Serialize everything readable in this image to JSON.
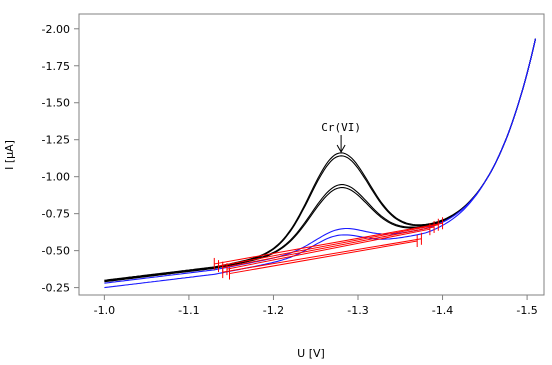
{
  "chart_data": {
    "type": "line",
    "title": "",
    "xlabel": "U [V]",
    "ylabel": "I [µA]",
    "xlim": [
      -0.97,
      -1.52
    ],
    "ylim": [
      -0.2,
      -2.1
    ],
    "x_ticks": [
      -1.0,
      -1.1,
      -1.2,
      -1.3,
      -1.4,
      -1.5
    ],
    "x_tick_labels": [
      "-1.0",
      "-1.1",
      "-1.2",
      "-1.3",
      "-1.4",
      "-1.5"
    ],
    "y_ticks": [
      -2.0,
      -1.75,
      -1.5,
      -1.25,
      -1.0,
      -0.75,
      -0.5,
      -0.25
    ],
    "y_tick_labels": [
      "-2.00",
      "-1.75",
      "-1.50",
      "-1.25",
      "-1.00",
      "-0.75",
      "-0.50",
      "-0.25"
    ],
    "grid": false,
    "annotation": {
      "text": "Cr(VI)",
      "x": -1.28,
      "y": -1.16
    },
    "colors": {
      "sample": "#000000",
      "blank": "#1a1aff",
      "baseline": "#ff0000"
    },
    "curve_peaks": [
      {
        "color": "sample",
        "peak": 1.16,
        "peak_x": -1.278,
        "width": 0.049,
        "end": 0.685,
        "slope": 0,
        "offset": 0
      },
      {
        "color": "sample",
        "peak": 1.145,
        "peak_x": -1.278,
        "width": 0.049,
        "end": 0.68,
        "slope": 0,
        "offset": 0.005
      },
      {
        "color": "sample",
        "peak": 0.95,
        "peak_x": -1.278,
        "width": 0.047,
        "end": 0.665,
        "slope": 0,
        "offset": 0.005
      },
      {
        "color": "sample",
        "peak": 0.935,
        "peak_x": -1.278,
        "width": 0.047,
        "end": 0.66,
        "slope": 0,
        "offset": 0.01
      },
      {
        "color": "blank",
        "peak": 0.665,
        "peak_x": -1.278,
        "width": 0.04,
        "end": 0.55,
        "slope": 0,
        "offset": 0.02
      },
      {
        "color": "blank",
        "peak": 0.655,
        "peak_x": -1.275,
        "width": 0.04,
        "end": 0.545,
        "slope": 0,
        "offset": 0.05
      }
    ],
    "baselines": [
      {
        "x1": -1.13,
        "y1": -0.41,
        "x2": -1.4,
        "y2": -0.685
      },
      {
        "x1": -1.135,
        "y1": -0.395,
        "x2": -1.395,
        "y2": -0.675
      },
      {
        "x1": -1.14,
        "y1": -0.385,
        "x2": -1.39,
        "y2": -0.66
      },
      {
        "x1": -1.145,
        "y1": -0.375,
        "x2": -1.385,
        "y2": -0.645
      },
      {
        "x1": -1.14,
        "y1": -0.355,
        "x2": -1.375,
        "y2": -0.58
      },
      {
        "x1": -1.148,
        "y1": -0.345,
        "x2": -1.37,
        "y2": -0.565
      }
    ]
  }
}
